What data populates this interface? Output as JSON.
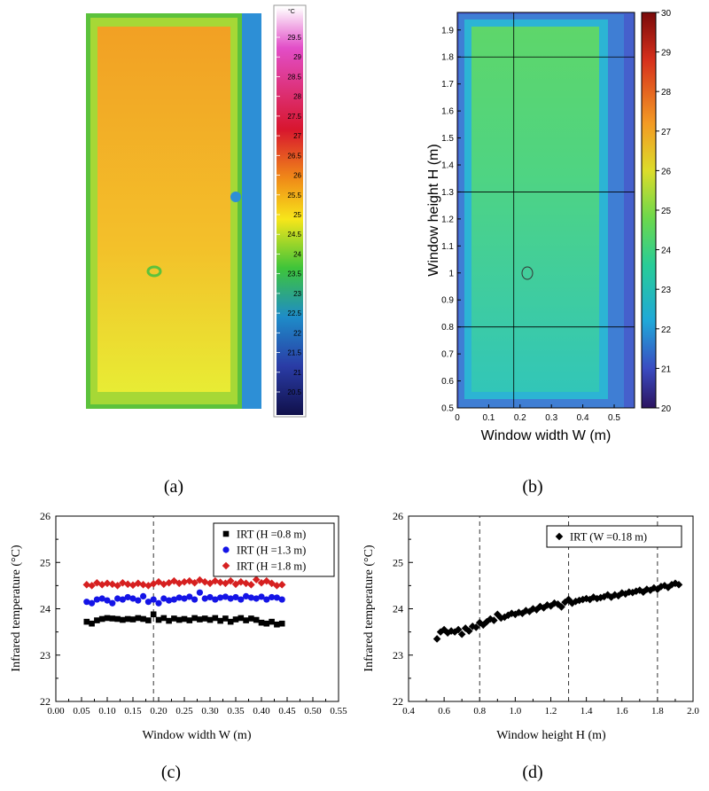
{
  "panels": {
    "a": {
      "label": "(a)",
      "colorbar_unit": "°C",
      "colorbar_ticks": [
        29.5,
        29,
        28.5,
        28,
        27.5,
        27,
        26.5,
        26,
        25.5,
        25,
        24.5,
        24,
        23.5,
        23,
        22.5,
        22,
        21.5,
        21,
        20.5
      ],
      "description": "infrared thermal image of window"
    },
    "b": {
      "label": "(b)",
      "xlabel": "Window width W (m)",
      "ylabel": "Window height H (m)",
      "xticks": [
        "0",
        "0.1",
        "0.2",
        "0.3",
        "0.4",
        "0.5"
      ],
      "yticks": [
        "0.5",
        "0.6",
        "0.7",
        "0.8",
        "0.9",
        "1",
        "1.1",
        "1.2",
        "1.3",
        "1.4",
        "1.5",
        "1.6",
        "1.7",
        "1.8",
        "1.9"
      ],
      "colorbar_ticks": [
        "30",
        "29",
        "28",
        "27",
        "26",
        "25",
        "24",
        "23",
        "22",
        "21",
        "20"
      ],
      "grid_lines_h": [
        0.8,
        1.3,
        1.8
      ],
      "grid_line_v": 0.18
    },
    "c": {
      "label": "(c)"
    },
    "d": {
      "label": "(d)"
    }
  },
  "colors": {
    "black": "#000000",
    "blue": "#1414e6",
    "red": "#d62020"
  },
  "chart_data": [
    {
      "type": "scatter",
      "panel": "c",
      "xlabel": "Window width W (m)",
      "ylabel": "Infrared temperature (°C)",
      "xlim": [
        0.0,
        0.55
      ],
      "ylim": [
        22,
        26
      ],
      "xticks": [
        "0.00",
        "0.05",
        "0.10",
        "0.15",
        "0.20",
        "0.25",
        "0.30",
        "0.35",
        "0.40",
        "0.45",
        "0.50",
        "0.55"
      ],
      "yticks": [
        "22",
        "23",
        "24",
        "25",
        "26"
      ],
      "vlines": [
        0.19
      ],
      "legend_position": "top-right",
      "x": [
        0.06,
        0.07,
        0.08,
        0.09,
        0.1,
        0.11,
        0.12,
        0.13,
        0.14,
        0.15,
        0.16,
        0.17,
        0.18,
        0.19,
        0.2,
        0.21,
        0.22,
        0.23,
        0.24,
        0.25,
        0.26,
        0.27,
        0.28,
        0.29,
        0.3,
        0.31,
        0.32,
        0.33,
        0.34,
        0.35,
        0.36,
        0.37,
        0.38,
        0.39,
        0.4,
        0.41,
        0.42,
        0.43,
        0.44
      ],
      "series": [
        {
          "name": "IRT (H =0.8 m)",
          "marker": "square",
          "color": "#000000",
          "values": [
            23.72,
            23.68,
            23.75,
            23.78,
            23.8,
            23.79,
            23.78,
            23.76,
            23.78,
            23.77,
            23.8,
            23.78,
            23.75,
            23.88,
            23.76,
            23.8,
            23.74,
            23.79,
            23.76,
            23.78,
            23.75,
            23.8,
            23.77,
            23.79,
            23.76,
            23.8,
            23.74,
            23.79,
            23.72,
            23.77,
            23.8,
            23.75,
            23.79,
            23.76,
            23.7,
            23.68,
            23.72,
            23.66,
            23.68
          ]
        },
        {
          "name": "IRT (H =1.3 m)",
          "marker": "circle",
          "color": "#1414e6",
          "values": [
            24.15,
            24.12,
            24.2,
            24.22,
            24.18,
            24.12,
            24.22,
            24.2,
            24.25,
            24.22,
            24.18,
            24.27,
            24.15,
            24.2,
            24.12,
            24.22,
            24.18,
            24.2,
            24.24,
            24.22,
            24.26,
            24.2,
            24.35,
            24.22,
            24.25,
            24.2,
            24.24,
            24.26,
            24.22,
            24.25,
            24.2,
            24.27,
            24.24,
            24.22,
            24.26,
            24.2,
            24.25,
            24.24,
            24.2
          ]
        },
        {
          "name": "IRT (H =1.8 m)",
          "marker": "diamond",
          "color": "#d62020",
          "values": [
            24.52,
            24.5,
            24.56,
            24.52,
            24.55,
            24.53,
            24.5,
            24.56,
            24.53,
            24.51,
            24.55,
            24.52,
            24.5,
            24.54,
            24.58,
            24.53,
            24.56,
            24.6,
            24.55,
            24.58,
            24.6,
            24.56,
            24.62,
            24.58,
            24.55,
            24.6,
            24.57,
            24.55,
            24.6,
            24.53,
            24.58,
            24.55,
            24.52,
            24.63,
            24.56,
            24.6,
            24.55,
            24.5,
            24.52
          ]
        }
      ]
    },
    {
      "type": "scatter",
      "panel": "d",
      "xlabel": "Window height H (m)",
      "ylabel": "Infrared temperature (°C)",
      "xlim": [
        0.4,
        2.0
      ],
      "ylim": [
        22,
        26
      ],
      "xticks": [
        "0.4",
        "0.6",
        "0.8",
        "1.0",
        "1.2",
        "1.4",
        "1.6",
        "1.8",
        "2.0"
      ],
      "yticks": [
        "22",
        "23",
        "24",
        "25",
        "26"
      ],
      "vlines": [
        0.8,
        1.3,
        1.8
      ],
      "legend_position": "top-right",
      "series": [
        {
          "name": "IRT (W =0.18 m)",
          "marker": "diamond",
          "color": "#000000",
          "x": [
            0.56,
            0.58,
            0.6,
            0.62,
            0.64,
            0.66,
            0.68,
            0.7,
            0.72,
            0.74,
            0.76,
            0.78,
            0.8,
            0.82,
            0.84,
            0.86,
            0.88,
            0.9,
            0.92,
            0.94,
            0.96,
            0.98,
            1.0,
            1.02,
            1.04,
            1.06,
            1.08,
            1.1,
            1.12,
            1.14,
            1.16,
            1.18,
            1.2,
            1.22,
            1.24,
            1.26,
            1.28,
            1.3,
            1.32,
            1.34,
            1.36,
            1.38,
            1.4,
            1.42,
            1.44,
            1.46,
            1.48,
            1.5,
            1.52,
            1.54,
            1.56,
            1.58,
            1.6,
            1.62,
            1.64,
            1.66,
            1.68,
            1.7,
            1.72,
            1.74,
            1.76,
            1.78,
            1.8,
            1.82,
            1.84,
            1.86,
            1.88,
            1.9,
            1.92
          ],
          "values": [
            23.35,
            23.5,
            23.55,
            23.48,
            23.52,
            23.5,
            23.55,
            23.45,
            23.58,
            23.52,
            23.62,
            23.6,
            23.7,
            23.65,
            23.72,
            23.78,
            23.75,
            23.88,
            23.8,
            23.82,
            23.86,
            23.9,
            23.88,
            23.92,
            23.9,
            23.96,
            23.94,
            24.0,
            23.98,
            24.05,
            24.02,
            24.08,
            24.06,
            24.12,
            24.1,
            24.04,
            24.14,
            24.2,
            24.12,
            24.16,
            24.18,
            24.2,
            24.22,
            24.2,
            24.25,
            24.22,
            24.24,
            24.26,
            24.3,
            24.25,
            24.3,
            24.28,
            24.34,
            24.32,
            24.36,
            24.35,
            24.38,
            24.4,
            24.36,
            24.42,
            24.4,
            24.45,
            24.42,
            24.48,
            24.5,
            24.46,
            24.52,
            24.55,
            24.52
          ]
        }
      ]
    }
  ]
}
